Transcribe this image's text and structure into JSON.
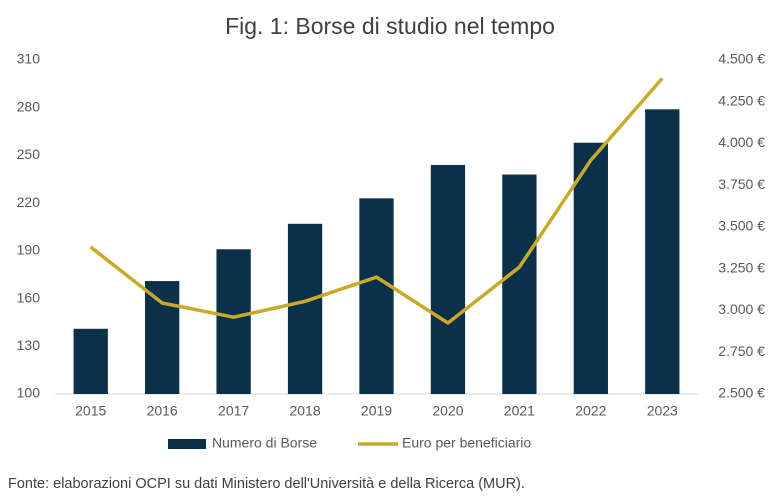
{
  "chart_data": {
    "type": "bar_line",
    "title": "Fig. 1: Borse di studio nel tempo",
    "categories": [
      "2015",
      "2016",
      "2017",
      "2018",
      "2019",
      "2020",
      "2021",
      "2022",
      "2023"
    ],
    "series": [
      {
        "name": "Numero di Borse",
        "type": "bar",
        "color": "#0b3049",
        "values": [
          141,
          171,
          191,
          207,
          223,
          244,
          238,
          258,
          279
        ]
      },
      {
        "name": "Euro per beneficiario",
        "type": "line",
        "axis": "y2",
        "color": "#c9a92a",
        "values": [
          3380,
          3045,
          2960,
          3055,
          3200,
          2925,
          3260,
          3900,
          4390
        ]
      }
    ],
    "ylim": [
      100,
      310
    ],
    "yticks": [
      100,
      130,
      160,
      190,
      220,
      250,
      280,
      310
    ],
    "y2lim": [
      2500,
      4500
    ],
    "y2ticks": [
      {
        "value": 2500,
        "label": "2.500 €"
      },
      {
        "value": 2750,
        "label": "2.750 €"
      },
      {
        "value": 3000,
        "label": "3.000 €"
      },
      {
        "value": 3250,
        "label": "3.250 €"
      },
      {
        "value": 3500,
        "label": "3.500 €"
      },
      {
        "value": 3750,
        "label": "3.750 €"
      },
      {
        "value": 4000,
        "label": "4.000 €"
      },
      {
        "value": 4250,
        "label": "4.250 €"
      },
      {
        "value": 4500,
        "label": "4.500 €"
      }
    ],
    "grid": false,
    "legend": "bottom",
    "source": "Fonte: elaborazioni OCPI su dati Ministero dell'Università e della Ricerca (MUR)."
  }
}
